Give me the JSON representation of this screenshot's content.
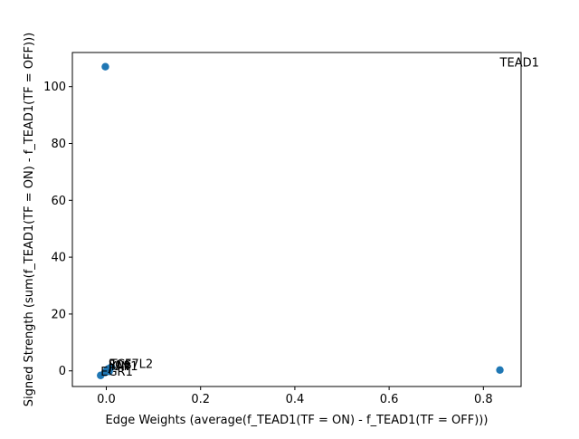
{
  "chart_data": {
    "type": "scatter",
    "title": "",
    "xlabel": "Edge Weights (average(f_TEAD1(TF = ON) - f_TEAD1(TF = OFF)))",
    "ylabel": "Signed Strength (sum(f_TEAD1(TF = ON) - f_TEAD1(TF = OFF)))",
    "xlim": [
      -0.072,
      0.88
    ],
    "ylim": [
      -5.5,
      112
    ],
    "xticks": [
      0.0,
      0.2,
      0.4,
      0.6,
      0.8
    ],
    "xtick_labels": [
      "0.0",
      "0.2",
      "0.4",
      "0.6",
      "0.8"
    ],
    "yticks": [
      0,
      20,
      40,
      60,
      80,
      100
    ],
    "ytick_labels": [
      "0",
      "20",
      "40",
      "60",
      "80",
      "100"
    ],
    "grid": false,
    "marker_color": "#1f77b4",
    "points": [
      {
        "x": -0.002,
        "y": 107.0
      },
      {
        "x": 0.835,
        "y": 0.3
      },
      {
        "x": -0.012,
        "y": -1.6
      },
      {
        "x": -0.003,
        "y": -0.6
      },
      {
        "x": 0.001,
        "y": 0.2
      },
      {
        "x": 0.004,
        "y": 0.7
      },
      {
        "x": 0.008,
        "y": 1.0
      },
      {
        "x": 0.011,
        "y": 1.3
      },
      {
        "x": 0.006,
        "y": -0.2
      }
    ],
    "annotations": [
      {
        "text": "TEAD1",
        "x": 0.835,
        "y": 107.0
      },
      {
        "text": "TCF7L2",
        "x": 0.008,
        "y": 1.0
      },
      {
        "text": "FOS",
        "x": 0.004,
        "y": 0.7
      },
      {
        "text": "JUN",
        "x": 0.005,
        "y": 0.3
      },
      {
        "text": "YAP1",
        "x": 0.006,
        "y": 0.2
      },
      {
        "text": "EGR1",
        "x": -0.012,
        "y": -1.6
      }
    ]
  }
}
